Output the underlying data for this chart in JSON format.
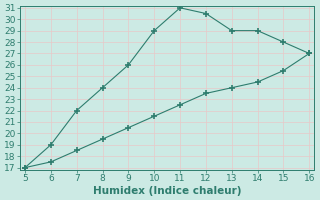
{
  "upper_x": [
    5,
    6,
    7,
    8,
    9,
    10,
    11,
    12,
    13,
    14,
    15,
    16
  ],
  "upper_y": [
    17,
    19,
    22,
    24,
    26,
    29,
    31,
    30.5,
    29,
    29,
    28,
    27
  ],
  "lower_x": [
    5,
    6,
    7,
    8,
    9,
    10,
    11,
    12,
    13,
    14,
    15,
    16
  ],
  "lower_y": [
    17,
    17.5,
    18.5,
    19.5,
    20.5,
    21.5,
    22.5,
    23.5,
    24,
    24.5,
    25.5,
    27
  ],
  "line_color": "#2e7d6e",
  "bg_color": "#cceae4",
  "grid_color": "#b0d8d0",
  "xlabel": "Humidex (Indice chaleur)",
  "xlim": [
    5,
    16
  ],
  "ylim": [
    17,
    31
  ],
  "xticks": [
    5,
    6,
    7,
    8,
    9,
    10,
    11,
    12,
    13,
    14,
    15,
    16
  ],
  "yticks": [
    17,
    18,
    19,
    20,
    21,
    22,
    23,
    24,
    25,
    26,
    27,
    28,
    29,
    30,
    31
  ],
  "tick_fontsize": 6.5,
  "xlabel_fontsize": 7.5
}
